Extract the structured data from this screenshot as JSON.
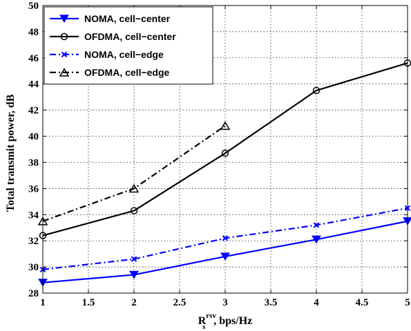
{
  "chart_data": {
    "type": "line",
    "x": [
      1,
      2,
      3,
      4,
      5
    ],
    "xlabel_main": "R",
    "xlabel_sub": "s",
    "xlabel_sup": "rsv",
    "xlabel_rest": ", bps/Hz",
    "ylabel": "Total transmit power, dB",
    "xlim": [
      1,
      5
    ],
    "ylim": [
      28,
      50
    ],
    "xticks": [
      1,
      1.5,
      2,
      2.5,
      3,
      3.5,
      4,
      4.5,
      5
    ],
    "xtick_labels": [
      "1",
      "1.5",
      "2",
      "2.5",
      "3",
      "3.5",
      "4",
      "4.5",
      "5"
    ],
    "yticks": [
      28,
      30,
      32,
      34,
      36,
      38,
      40,
      42,
      44,
      46,
      48,
      50
    ],
    "ytick_labels": [
      "28",
      "30",
      "32",
      "34",
      "36",
      "38",
      "40",
      "42",
      "44",
      "46",
      "48",
      "50"
    ],
    "grid": true,
    "legend_position": "top-left",
    "series": [
      {
        "name": "NOMA, cell−center",
        "color": "#0000ff",
        "line": "solid",
        "marker": "triangle-down",
        "x": [
          1,
          2,
          3,
          4,
          5
        ],
        "values": [
          28.8,
          29.4,
          30.8,
          32.1,
          33.5
        ]
      },
      {
        "name": "OFDMA, cell−center",
        "color": "#000000",
        "line": "solid",
        "marker": "circle",
        "x": [
          1,
          2,
          3,
          4,
          5
        ],
        "values": [
          32.4,
          34.3,
          38.7,
          43.5,
          45.6
        ]
      },
      {
        "name": "NOMA, cell−edge",
        "color": "#0000ff",
        "line": "dashdot",
        "marker": "x",
        "x": [
          1,
          2,
          3,
          4,
          5
        ],
        "values": [
          29.8,
          30.6,
          32.2,
          33.2,
          34.5
        ]
      },
      {
        "name": "OFDMA, cell−edge",
        "color": "#000000",
        "line": "dashdot",
        "marker": "triangle-up",
        "x": [
          1,
          2,
          3
        ],
        "values": [
          33.5,
          36.0,
          40.8
        ]
      }
    ]
  }
}
